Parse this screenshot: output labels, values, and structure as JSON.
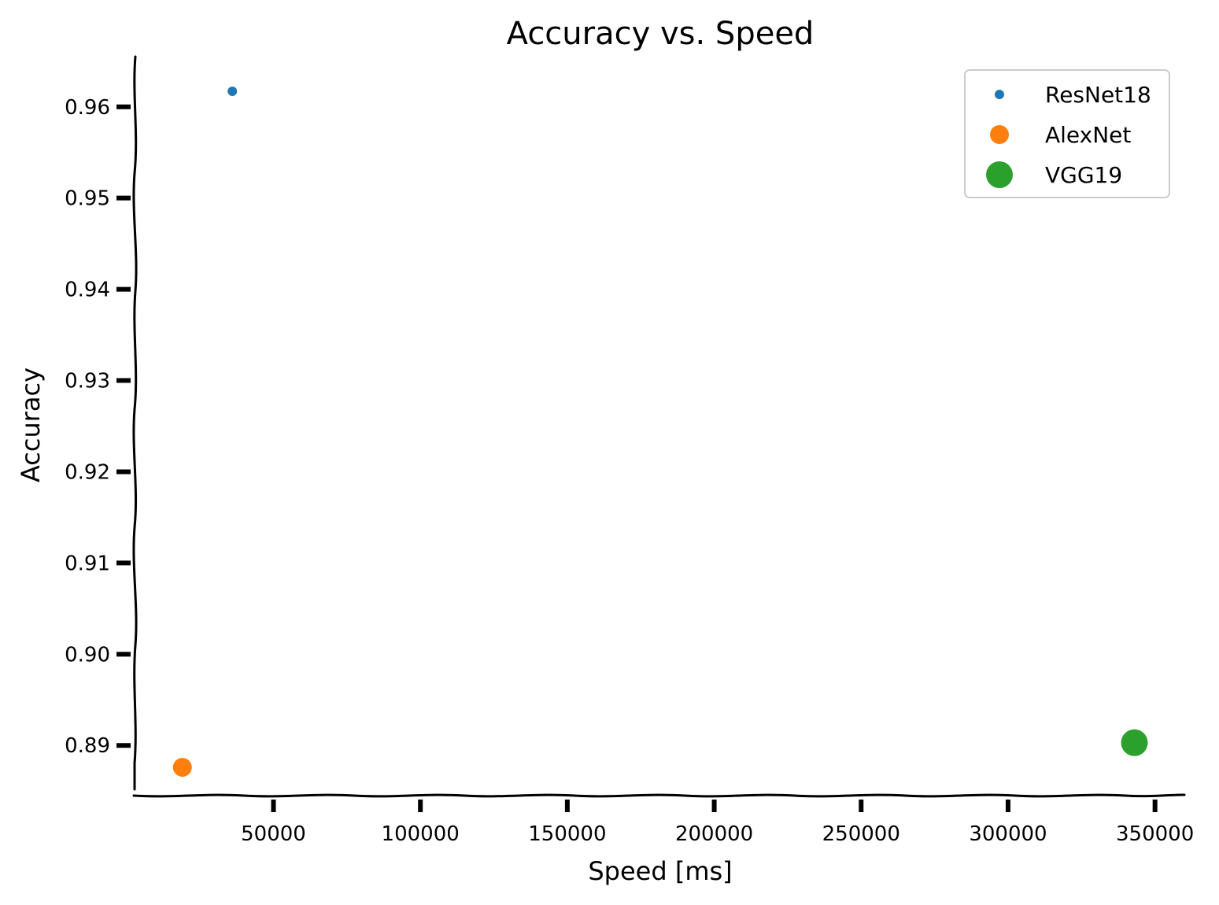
{
  "chart_data": {
    "type": "scatter",
    "title": "Accuracy vs. Speed",
    "xlabel": "Speed [ms]",
    "ylabel": "Accuracy",
    "xlim": [
      3000,
      360000
    ],
    "ylim": [
      0.8845,
      0.9655
    ],
    "x_ticks": [
      50000,
      100000,
      150000,
      200000,
      250000,
      300000,
      350000
    ],
    "x_tick_labels": [
      "50000",
      "100000",
      "150000",
      "200000",
      "250000",
      "300000",
      "350000"
    ],
    "y_ticks": [
      0.89,
      0.9,
      0.91,
      0.92,
      0.93,
      0.94,
      0.95,
      0.96
    ],
    "y_tick_labels": [
      "0.89",
      "0.90",
      "0.91",
      "0.92",
      "0.93",
      "0.94",
      "0.95",
      "0.96"
    ],
    "grid": false,
    "legend_position": "top-right",
    "series": [
      {
        "name": "ResNet18",
        "color": "#1f77b4",
        "size": "small",
        "points": [
          {
            "x": 36000,
            "y": 0.9617
          }
        ]
      },
      {
        "name": "AlexNet",
        "color": "#ff7f0e",
        "size": "medium",
        "points": [
          {
            "x": 19000,
            "y": 0.8876
          }
        ]
      },
      {
        "name": "VGG19",
        "color": "#2ca02c",
        "size": "large",
        "points": [
          {
            "x": 343000,
            "y": 0.8903
          }
        ]
      }
    ]
  }
}
